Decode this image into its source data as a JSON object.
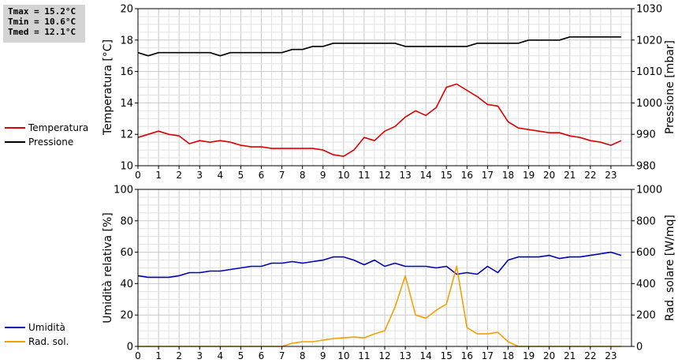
{
  "stats": {
    "tmax": "Tmax = 15.2°C",
    "tmin": "Tmin = 10.6°C",
    "tmed": "Tmed = 12.1°C"
  },
  "legend_top": [
    {
      "label": "Temperatura",
      "color": "#dd0000"
    },
    {
      "label": "Pressione",
      "color": "#000000"
    }
  ],
  "legend_bottom": [
    {
      "label": "Umidità",
      "color": "#0000bb"
    },
    {
      "label": "Rad. sol.",
      "color": "#f5a000"
    }
  ],
  "chart_data": [
    {
      "type": "line",
      "xlabel": "",
      "xlim": [
        0,
        24
      ],
      "xticks": [
        "0",
        "1",
        "2",
        "3",
        "4",
        "5",
        "6",
        "7",
        "8",
        "9",
        "10",
        "11",
        "12",
        "13",
        "14",
        "15",
        "16",
        "17",
        "18",
        "19",
        "20",
        "21",
        "22",
        "23"
      ],
      "ylabel_left": "Temperatura [°C]",
      "ylim_left": [
        10,
        20
      ],
      "yticks_left": [
        "10",
        "12",
        "14",
        "16",
        "18",
        "20"
      ],
      "ylabel_right": "Pressione [mbar]",
      "ylim_right": [
        980,
        1030
      ],
      "yticks_right": [
        "980",
        "990",
        "1000",
        "1010",
        "1020",
        "1030"
      ],
      "grid": true,
      "series": [
        {
          "name": "Temperatura",
          "axis": "left",
          "color": "#dd0000",
          "x": [
            0,
            0.5,
            1,
            1.5,
            2,
            2.5,
            3,
            3.5,
            4,
            4.5,
            5,
            5.5,
            6,
            6.5,
            7,
            7.5,
            8,
            8.5,
            9,
            9.5,
            10,
            10.5,
            11,
            11.5,
            12,
            12.5,
            13,
            13.5,
            14,
            14.5,
            15,
            15.5,
            16,
            16.5,
            17,
            17.5,
            18,
            18.5,
            19,
            19.5,
            20,
            20.5,
            21,
            21.5,
            22,
            22.5,
            23,
            23.5
          ],
          "values": [
            11.8,
            12.0,
            12.2,
            12.0,
            11.9,
            11.4,
            11.6,
            11.5,
            11.6,
            11.5,
            11.3,
            11.2,
            11.2,
            11.1,
            11.1,
            11.1,
            11.1,
            11.1,
            11.0,
            10.7,
            10.6,
            11.0,
            11.8,
            11.6,
            12.2,
            12.5,
            13.1,
            13.5,
            13.2,
            13.7,
            15.0,
            15.2,
            14.8,
            14.4,
            13.9,
            13.8,
            12.8,
            12.4,
            12.3,
            12.2,
            12.1,
            12.1,
            11.9,
            11.8,
            11.6,
            11.5,
            11.3,
            11.6
          ]
        },
        {
          "name": "Pressione",
          "axis": "right",
          "color": "#000000",
          "x": [
            0,
            0.5,
            1,
            1.5,
            2,
            2.5,
            3,
            3.5,
            4,
            4.5,
            5,
            5.5,
            6,
            6.5,
            7,
            7.5,
            8,
            8.5,
            9,
            9.5,
            10,
            10.5,
            11,
            11.5,
            12,
            12.5,
            13,
            13.5,
            14,
            14.5,
            15,
            15.5,
            16,
            16.5,
            17,
            17.5,
            18,
            18.5,
            19,
            19.5,
            20,
            20.5,
            21,
            21.5,
            22,
            22.5,
            23,
            23.5
          ],
          "values": [
            1016,
            1015,
            1016,
            1016,
            1016,
            1016,
            1016,
            1016,
            1015,
            1016,
            1016,
            1016,
            1016,
            1016,
            1016,
            1017,
            1017,
            1018,
            1018,
            1019,
            1019,
            1019,
            1019,
            1019,
            1019,
            1019,
            1018,
            1018,
            1018,
            1018,
            1018,
            1018,
            1018,
            1019,
            1019,
            1019,
            1019,
            1019,
            1020,
            1020,
            1020,
            1020,
            1021,
            1021,
            1021,
            1021,
            1021,
            1021
          ]
        }
      ]
    },
    {
      "type": "line",
      "xlabel": "",
      "xlim": [
        0,
        24
      ],
      "xticks": [
        "0",
        "1",
        "2",
        "3",
        "4",
        "5",
        "6",
        "7",
        "8",
        "9",
        "10",
        "11",
        "12",
        "13",
        "14",
        "15",
        "16",
        "17",
        "18",
        "19",
        "20",
        "21",
        "22",
        "23"
      ],
      "ylabel_left": "Umidità relativa [%]",
      "ylim_left": [
        0,
        100
      ],
      "yticks_left": [
        "0",
        "20",
        "40",
        "60",
        "80",
        "100"
      ],
      "ylabel_right": "Rad. solare [W/mq]",
      "ylim_right": [
        0,
        1000
      ],
      "yticks_right": [
        "0",
        "200",
        "400",
        "600",
        "800",
        "1000"
      ],
      "grid": true,
      "series": [
        {
          "name": "Umidità",
          "axis": "left",
          "color": "#0000bb",
          "x": [
            0,
            0.5,
            1,
            1.5,
            2,
            2.5,
            3,
            3.5,
            4,
            4.5,
            5,
            5.5,
            6,
            6.5,
            7,
            7.5,
            8,
            8.5,
            9,
            9.5,
            10,
            10.5,
            11,
            11.5,
            12,
            12.5,
            13,
            13.5,
            14,
            14.5,
            15,
            15.5,
            16,
            16.5,
            17,
            17.5,
            18,
            18.5,
            19,
            19.5,
            20,
            20.5,
            21,
            21.5,
            22,
            22.5,
            23,
            23.5
          ],
          "values": [
            45,
            44,
            44,
            44,
            45,
            47,
            47,
            48,
            48,
            49,
            50,
            51,
            51,
            53,
            53,
            54,
            53,
            54,
            55,
            57,
            57,
            55,
            52,
            55,
            51,
            53,
            51,
            51,
            51,
            50,
            51,
            46,
            47,
            46,
            51,
            47,
            55,
            57,
            57,
            57,
            58,
            56,
            57,
            57,
            58,
            59,
            60,
            58
          ]
        },
        {
          "name": "Rad. sol.",
          "axis": "right",
          "color": "#f5a000",
          "x": [
            0,
            0.5,
            1,
            1.5,
            2,
            2.5,
            3,
            3.5,
            4,
            4.5,
            5,
            5.5,
            6,
            6.5,
            7,
            7.5,
            8,
            8.5,
            9,
            9.5,
            10,
            10.5,
            11,
            11.5,
            12,
            12.5,
            13,
            13.5,
            14,
            14.5,
            15,
            15.5,
            16,
            16.5,
            17,
            17.5,
            18,
            18.5,
            19,
            19.5,
            20,
            20.5,
            21,
            21.5,
            22,
            22.5,
            23,
            23.5
          ],
          "values": [
            0,
            0,
            0,
            0,
            0,
            0,
            0,
            0,
            0,
            0,
            0,
            0,
            0,
            0,
            0,
            20,
            30,
            30,
            40,
            50,
            55,
            60,
            55,
            80,
            100,
            250,
            450,
            200,
            180,
            230,
            270,
            510,
            120,
            80,
            80,
            90,
            30,
            0,
            0,
            0,
            0,
            0,
            0,
            0,
            0,
            0,
            0,
            0
          ]
        }
      ]
    }
  ]
}
